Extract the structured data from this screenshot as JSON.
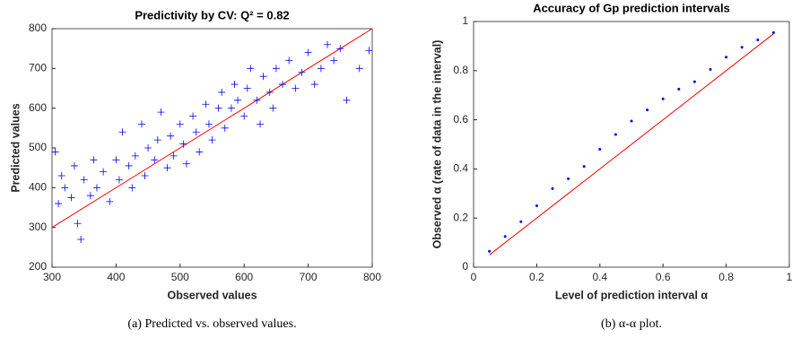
{
  "chart_data": [
    {
      "type": "scatter",
      "title": "Predictivity by CV: Q² = 0.82",
      "x_label": "Observed values",
      "y_label": "Predicted values",
      "caption": "(a) Predicted vs. observed values.",
      "points": {
        "color": "#0000ff",
        "x": [
          305,
          310,
          315,
          320,
          330,
          335,
          340,
          345,
          350,
          360,
          365,
          370,
          380,
          390,
          400,
          405,
          410,
          420,
          425,
          430,
          440,
          445,
          450,
          460,
          465,
          470,
          480,
          485,
          490,
          500,
          505,
          510,
          520,
          525,
          530,
          540,
          545,
          550,
          560,
          565,
          570,
          580,
          585,
          590,
          600,
          605,
          610,
          620,
          625,
          630,
          640,
          645,
          650,
          660,
          670,
          680,
          690,
          700,
          710,
          720,
          730,
          740,
          750,
          760,
          780,
          795
        ],
        "values": [
          490,
          360,
          430,
          400,
          375,
          455,
          310,
          270,
          420,
          380,
          470,
          400,
          440,
          365,
          470,
          420,
          540,
          455,
          400,
          480,
          560,
          430,
          500,
          470,
          520,
          590,
          450,
          530,
          480,
          560,
          510,
          460,
          580,
          540,
          490,
          610,
          560,
          520,
          600,
          640,
          550,
          600,
          660,
          620,
          580,
          650,
          700,
          620,
          560,
          680,
          640,
          600,
          700,
          660,
          720,
          650,
          690,
          740,
          660,
          700,
          760,
          720,
          750,
          620,
          700,
          745
        ]
      },
      "reference_line": {
        "color": "#ff0000",
        "x": [
          300,
          800
        ],
        "values": [
          300,
          800
        ]
      },
      "xlim": [
        300,
        800
      ],
      "xticks": [
        300,
        400,
        500,
        600,
        700,
        800
      ],
      "ylim": [
        200,
        800
      ],
      "yticks": [
        200,
        300,
        400,
        500,
        600,
        700,
        800
      ]
    },
    {
      "type": "scatter",
      "title": "Accuracy of Gp prediction intervals",
      "x_label": "Level of prediction interval α",
      "y_label": "Observed α (rate of data in the interval)",
      "caption": "(b) α-α plot.",
      "points": {
        "color": "#0000ff",
        "x": [
          0.05,
          0.1,
          0.15,
          0.2,
          0.25,
          0.3,
          0.35,
          0.4,
          0.45,
          0.5,
          0.55,
          0.6,
          0.65,
          0.7,
          0.75,
          0.8,
          0.85,
          0.9,
          0.95
        ],
        "values": [
          0.065,
          0.125,
          0.185,
          0.25,
          0.32,
          0.36,
          0.41,
          0.48,
          0.54,
          0.595,
          0.64,
          0.685,
          0.725,
          0.755,
          0.805,
          0.855,
          0.895,
          0.925,
          0.955
        ]
      },
      "reference_line": {
        "color": "#ff0000",
        "x": [
          0.05,
          0.95
        ],
        "values": [
          0.05,
          0.95
        ]
      },
      "xlim": [
        0,
        1
      ],
      "xticks": [
        0,
        0.2,
        0.4,
        0.6,
        0.8,
        1
      ],
      "ylim": [
        0,
        1
      ],
      "yticks": [
        0,
        0.2,
        0.4,
        0.6,
        0.8,
        1
      ]
    }
  ]
}
